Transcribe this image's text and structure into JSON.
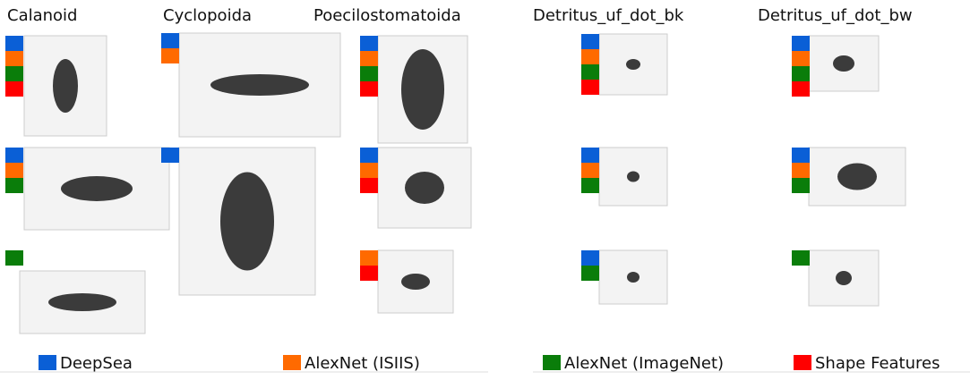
{
  "header": {
    "columns": [
      "Calanoid",
      "Cyclopoida",
      "Poecilostomatoida",
      "Detritus_uf_dot_bk",
      "Detritus_uf_dot_bw"
    ]
  },
  "legend": {
    "items": [
      {
        "label": "DeepSea",
        "color": "#0a5fd6"
      },
      {
        "label": "AlexNet (ISIIS)",
        "color": "#ff6a00"
      },
      {
        "label": "AlexNet (ImageNet)",
        "color": "#0a7d0a"
      },
      {
        "label": "Shape Features",
        "color": "#ff0000"
      }
    ]
  }
}
